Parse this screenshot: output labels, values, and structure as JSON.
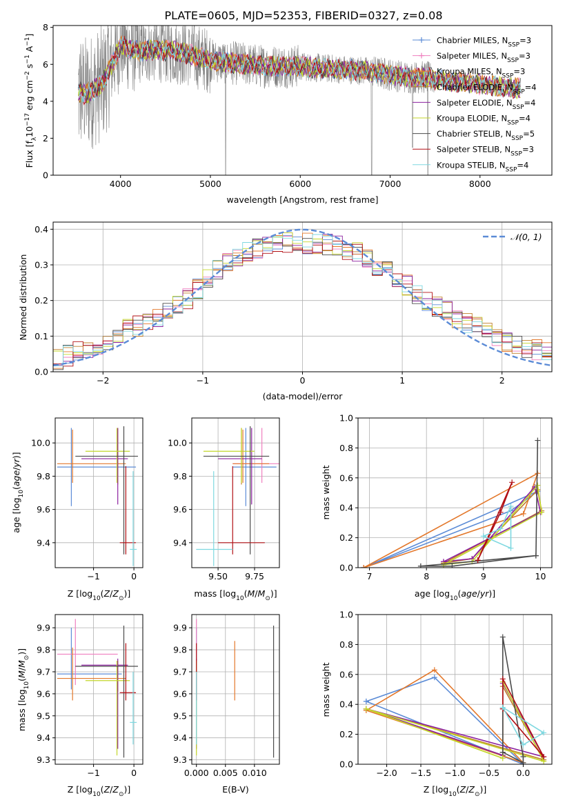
{
  "figure_title": "PLATE=0605, MJD=52353, FIBERID=0327, z=0.08",
  "colors": {
    "Chabrier MILES": "#5b8bd6",
    "Salpeter MILES": "#ef7fbf",
    "Kroupa MILES": "#e3772a",
    "Chabrier ELODIE": "#c07e2a",
    "Salpeter ELODIE": "#8a1f9e",
    "Kroupa ELODIE": "#c3d628",
    "Chabrier STELIB": "#4a4a4a",
    "Salpeter STELIB": "#b10f14",
    "Kroupa STELIB": "#7ed8e0",
    "data": "#808080",
    "normal": "#5b8bd6"
  },
  "chart_data": [
    {
      "type": "line",
      "panel": "spectrum",
      "title": "PLATE=0605, MJD=52353, FIBERID=0327, z=0.08",
      "xlabel": "wavelength [Angstrom, rest frame]",
      "ylabel": "Flux [f_λ 10^-17 erg cm^-2 s^-1 A^-1]",
      "xlim": [
        3250,
        8800
      ],
      "ylim": [
        0,
        8.1
      ],
      "xticks": [
        4000,
        5000,
        6000,
        7000,
        8000
      ],
      "yticks": [
        0,
        2,
        4,
        6,
        8
      ],
      "legend_position": "right",
      "data_range": [
        3530,
        8450
      ],
      "continuum": {
        "x": [
          3530,
          3600,
          3700,
          3800,
          3900,
          4000,
          4100,
          4200,
          4400,
          4600,
          4800,
          5000,
          5200,
          5400,
          5600,
          5800,
          6000,
          6200,
          6400,
          6600,
          6800,
          7000,
          7200,
          7400,
          7600,
          7800,
          8000,
          8200,
          8450
        ],
        "y": [
          4.5,
          4.4,
          4.6,
          5.0,
          6.0,
          7.0,
          6.9,
          6.7,
          6.8,
          6.7,
          6.5,
          6.2,
          6.1,
          6.0,
          5.9,
          5.9,
          5.9,
          5.8,
          5.75,
          5.7,
          5.6,
          5.45,
          5.3,
          5.3,
          5.1,
          5.0,
          4.95,
          4.8,
          4.7
        ]
      },
      "series": [
        {
          "name": "Chabrier MILES, N_SSP=3",
          "label_main": "Chabrier MILES, N",
          "sub": "SSP",
          "suffix": "=3",
          "marker": "+"
        },
        {
          "name": "Salpeter MILES, N_SSP=3",
          "label_main": "Salpeter MILES, N",
          "sub": "SSP",
          "suffix": "=3",
          "marker": "+"
        },
        {
          "name": "Kroupa MILES, N_SSP=3",
          "label_main": "Kroupa MILES, N",
          "sub": "SSP",
          "suffix": "=3",
          "marker": "+"
        },
        {
          "name": "Chabrier ELODIE, N_SSP=4",
          "label_main": "Chabrier ELODIE, N",
          "sub": "SSP",
          "suffix": "=4",
          "marker": ""
        },
        {
          "name": "Salpeter ELODIE, N_SSP=4",
          "label_main": "Salpeter ELODIE, N",
          "sub": "SSP",
          "suffix": "=4",
          "marker": ""
        },
        {
          "name": "Kroupa ELODIE, N_SSP=4",
          "label_main": "Kroupa ELODIE, N",
          "sub": "SSP",
          "suffix": "=4",
          "marker": ""
        },
        {
          "name": "Chabrier STELIB, N_SSP=5",
          "label_main": "Chabrier STELIB, N",
          "sub": "SSP",
          "suffix": "=5",
          "marker": ""
        },
        {
          "name": "Salpeter STELIB, N_SSP=3",
          "label_main": "Salpeter STELIB, N",
          "sub": "SSP",
          "suffix": "=3",
          "marker": ""
        },
        {
          "name": "Kroupa STELIB, N_SSP=4",
          "label_main": "Kroupa STELIB, N",
          "sub": "SSP",
          "suffix": "=4",
          "marker": ""
        }
      ]
    },
    {
      "type": "histogram",
      "panel": "residuals",
      "xlabel": "(data-model)/error",
      "ylabel": "Normed distribution",
      "xlim": [
        -2.5,
        2.5
      ],
      "ylim": [
        0,
        0.42
      ],
      "xticks": [
        -2,
        -1,
        0,
        1,
        2
      ],
      "yticks": [
        0.0,
        0.1,
        0.2,
        0.3,
        0.4
      ],
      "bin_width": 0.1,
      "legend": "𝒩(0, 1)",
      "legend_position": "top-right",
      "grid": true,
      "envelope": {
        "x": [
          -2.5,
          -2.2,
          -2.0,
          -1.8,
          -1.6,
          -1.4,
          -1.2,
          -1.0,
          -0.8,
          -0.6,
          -0.4,
          -0.2,
          0.0,
          0.2,
          0.4,
          0.6,
          0.8,
          1.0,
          1.2,
          1.4,
          1.6,
          1.8,
          2.0,
          2.2,
          2.5
        ],
        "y": [
          0.03,
          0.06,
          0.07,
          0.12,
          0.13,
          0.16,
          0.19,
          0.25,
          0.3,
          0.33,
          0.35,
          0.36,
          0.36,
          0.36,
          0.35,
          0.33,
          0.29,
          0.26,
          0.2,
          0.18,
          0.14,
          0.12,
          0.09,
          0.07,
          0.05
        ]
      }
    },
    {
      "type": "scatter",
      "panel": "age_vs_Z",
      "xlabel": "Z [log10(Z/Z☉)]",
      "ylabel": "age  [log10(age/yr)]",
      "xlim": [
        -1.95,
        0.22
      ],
      "ylim": [
        9.25,
        10.15
      ],
      "xticks": [
        -1,
        0
      ],
      "yticks": [
        9.4,
        9.6,
        9.8,
        10.0
      ],
      "points": [
        {
          "model": "Chabrier MILES",
          "x": -1.55,
          "y": 9.855,
          "xlo": -1.9,
          "xhi": 0.05,
          "ylo": 9.62,
          "yhi": 10.09
        },
        {
          "model": "Kroupa MILES",
          "x": -1.52,
          "y": 9.875,
          "xlo": -1.9,
          "xhi": -0.2,
          "ylo": 9.76,
          "yhi": 10.08
        },
        {
          "model": "Chabrier ELODIE",
          "x": -0.4,
          "y": 9.83,
          "xlo": -0.4,
          "xhi": -0.4,
          "ylo": 9.75,
          "yhi": 10.09
        },
        {
          "model": "Salpeter ELODIE",
          "x": -0.4,
          "y": 9.905,
          "xlo": -1.3,
          "xhi": -0.15,
          "ylo": 9.63,
          "yhi": 10.09
        },
        {
          "model": "Kroupa ELODIE",
          "x": -0.42,
          "y": 9.95,
          "xlo": -1.2,
          "xhi": -0.1,
          "ylo": 9.76,
          "yhi": 10.09
        },
        {
          "model": "Chabrier STELIB",
          "x": -0.25,
          "y": 9.92,
          "xlo": -1.45,
          "xhi": 0.1,
          "ylo": 9.33,
          "yhi": 10.1
        },
        {
          "model": "Salpeter STELIB",
          "x": -0.2,
          "y": 9.4,
          "xlo": -0.35,
          "xhi": 0.05,
          "ylo": 9.33,
          "yhi": 9.86
        },
        {
          "model": "Kroupa STELIB",
          "x": -0.02,
          "y": 9.36,
          "xlo": -0.1,
          "xhi": 0.07,
          "ylo": 9.26,
          "yhi": 9.83
        }
      ]
    },
    {
      "type": "scatter",
      "panel": "age_vs_mass",
      "xlabel": "mass [log10(M/M☉)]",
      "ylabel": "",
      "xlim": [
        9.32,
        9.92
      ],
      "ylim": [
        9.25,
        10.15
      ],
      "xticks": [
        9.5,
        9.75
      ],
      "xtick_labels": [
        "9.50",
        "9.75"
      ],
      "yticks": [
        9.4,
        9.6,
        9.8,
        10.0
      ],
      "points": [
        {
          "model": "Chabrier MILES",
          "x": 9.69,
          "y": 9.855,
          "xlo": 9.6,
          "xhi": 9.9,
          "ylo": 9.62,
          "yhi": 10.09
        },
        {
          "model": "Salpeter MILES",
          "x": 9.8,
          "y": 9.875,
          "xlo": 9.6,
          "xhi": 9.92,
          "ylo": 9.76,
          "yhi": 10.09
        },
        {
          "model": "Kroupa MILES",
          "x": 9.67,
          "y": 9.875,
          "xlo": 9.6,
          "xhi": 9.85,
          "ylo": 9.76,
          "yhi": 10.08
        },
        {
          "model": "Chabrier ELODIE",
          "x": 9.66,
          "y": 9.83,
          "xlo": 9.66,
          "xhi": 9.66,
          "ylo": 9.75,
          "yhi": 10.09
        },
        {
          "model": "Salpeter ELODIE",
          "x": 9.73,
          "y": 9.905,
          "xlo": 9.5,
          "xhi": 9.8,
          "ylo": 9.63,
          "yhi": 10.09
        },
        {
          "model": "Kroupa ELODIE",
          "x": 9.66,
          "y": 9.95,
          "xlo": 9.4,
          "xhi": 9.75,
          "ylo": 9.76,
          "yhi": 10.09
        },
        {
          "model": "Chabrier STELIB",
          "x": 9.72,
          "y": 9.92,
          "xlo": 9.4,
          "xhi": 9.85,
          "ylo": 9.33,
          "yhi": 10.1
        },
        {
          "model": "Salpeter STELIB",
          "x": 9.6,
          "y": 9.4,
          "xlo": 9.5,
          "xhi": 9.82,
          "ylo": 9.33,
          "yhi": 9.86
        },
        {
          "model": "Kroupa STELIB",
          "x": 9.47,
          "y": 9.36,
          "xlo": 9.35,
          "xhi": 9.6,
          "ylo": 9.26,
          "yhi": 9.83
        }
      ]
    },
    {
      "type": "line",
      "panel": "massweight_vs_age",
      "xlabel": "age  [log10(age/yr)]",
      "ylabel": "mass weight",
      "xlim": [
        6.8,
        10.2
      ],
      "ylim": [
        0,
        1.0
      ],
      "xticks": [
        7,
        8,
        9,
        10
      ],
      "yticks": [
        0.0,
        0.2,
        0.4,
        0.6,
        0.8,
        1.0
      ],
      "series": [
        {
          "model": "Chabrier MILES",
          "x": [
            6.9,
            9.48,
            9.95,
            6.9
          ],
          "y": [
            0.0,
            0.38,
            0.51,
            0.0
          ]
        },
        {
          "model": "Kroupa MILES",
          "x": [
            6.9,
            9.7,
            9.95,
            6.9
          ],
          "y": [
            0.0,
            0.36,
            0.63,
            0.0
          ]
        },
        {
          "model": "Chabrier ELODIE",
          "x": [
            8.3,
            8.8,
            9.95,
            10.02,
            8.3
          ],
          "y": [
            0.03,
            0.06,
            0.52,
            0.38,
            0.03
          ]
        },
        {
          "model": "Salpeter ELODIE",
          "x": [
            8.3,
            8.8,
            9.9,
            10.0,
            8.3
          ],
          "y": [
            0.04,
            0.06,
            0.54,
            0.37,
            0.04
          ]
        },
        {
          "model": "Kroupa ELODIE",
          "x": [
            8.3,
            8.8,
            9.95,
            10.02,
            8.3
          ],
          "y": [
            0.02,
            0.04,
            0.55,
            0.37,
            0.02
          ]
        },
        {
          "model": "Chabrier STELIB",
          "x": [
            7.9,
            8.45,
            9.92,
            9.95,
            9.92,
            7.9
          ],
          "y": [
            0.01,
            0.01,
            0.08,
            0.85,
            0.08,
            0.01
          ]
        },
        {
          "model": "Salpeter STELIB",
          "x": [
            8.9,
            9.3,
            9.5,
            8.9
          ],
          "y": [
            0.05,
            0.37,
            0.57,
            0.05
          ]
        },
        {
          "model": "Kroupa STELIB",
          "x": [
            9.0,
            9.3,
            9.48,
            9.48,
            9.0
          ],
          "y": [
            0.21,
            0.26,
            0.41,
            0.13,
            0.21
          ]
        }
      ]
    },
    {
      "type": "scatter",
      "panel": "mass_vs_Z",
      "xlabel": "Z [log10(Z/Z☉)]",
      "ylabel": "mass [log10(M/M☉)]",
      "xlim": [
        -1.95,
        0.22
      ],
      "ylim": [
        9.28,
        9.96
      ],
      "xticks": [
        -1,
        0
      ],
      "yticks": [
        9.3,
        9.4,
        9.5,
        9.6,
        9.7,
        9.8,
        9.9
      ],
      "points": [
        {
          "model": "Chabrier MILES",
          "x": -1.55,
          "y": 9.69,
          "xlo": -1.9,
          "xhi": -0.3,
          "ylo": 9.62,
          "yhi": 9.9
        },
        {
          "model": "Salpeter MILES",
          "x": -1.45,
          "y": 9.78,
          "xlo": -1.9,
          "xhi": -0.4,
          "ylo": 9.64,
          "yhi": 9.94
        },
        {
          "model": "Kroupa MILES",
          "x": -1.52,
          "y": 9.67,
          "xlo": -1.9,
          "xhi": -0.2,
          "ylo": 9.57,
          "yhi": 9.81
        },
        {
          "model": "Chabrier ELODIE",
          "x": -0.4,
          "y": 9.665,
          "xlo": -0.4,
          "xhi": -0.4,
          "ylo": 9.61,
          "yhi": 9.75
        },
        {
          "model": "Salpeter ELODIE",
          "x": -0.4,
          "y": 9.73,
          "xlo": -1.3,
          "xhi": -0.15,
          "ylo": 9.35,
          "yhi": 9.76
        },
        {
          "model": "Kroupa ELODIE",
          "x": -0.42,
          "y": 9.66,
          "xlo": -1.2,
          "xhi": -0.1,
          "ylo": 9.32,
          "yhi": 9.75
        },
        {
          "model": "Chabrier STELIB",
          "x": -0.25,
          "y": 9.725,
          "xlo": -1.45,
          "xhi": 0.1,
          "ylo": 9.31,
          "yhi": 9.91
        },
        {
          "model": "Salpeter STELIB",
          "x": -0.2,
          "y": 9.605,
          "xlo": -0.35,
          "xhi": 0.05,
          "ylo": 9.57,
          "yhi": 9.83
        },
        {
          "model": "Kroupa STELIB",
          "x": -0.02,
          "y": 9.47,
          "xlo": -0.1,
          "xhi": 0.07,
          "ylo": 9.37,
          "yhi": 9.7
        }
      ]
    },
    {
      "type": "scatter",
      "panel": "mass_vs_ebv",
      "xlabel": "E(B-V)",
      "ylabel": "",
      "xlim": [
        -0.0008,
        0.0143
      ],
      "ylim": [
        9.28,
        9.96
      ],
      "xticks": [
        0.0,
        0.005,
        0.01
      ],
      "xtick_labels": [
        "0.000",
        "0.005",
        "0.010"
      ],
      "yticks": [
        9.3,
        9.4,
        9.5,
        9.6,
        9.7,
        9.8,
        9.9
      ],
      "points": [
        {
          "model": "Chabrier MILES",
          "x": 0.0,
          "y": 9.69,
          "ylo": 9.62,
          "yhi": 9.9
        },
        {
          "model": "Salpeter MILES",
          "x": 0.0,
          "y": 9.78,
          "ylo": 9.64,
          "yhi": 9.94
        },
        {
          "model": "Kroupa MILES",
          "x": 0.0066,
          "y": 9.67,
          "ylo": 9.57,
          "yhi": 9.84
        },
        {
          "model": "Salpeter ELODIE",
          "x": 0.0,
          "y": 9.73,
          "ylo": 9.35,
          "yhi": 9.76
        },
        {
          "model": "Kroupa ELODIE",
          "x": 0.0,
          "y": 9.66,
          "ylo": 9.32,
          "yhi": 9.75
        },
        {
          "model": "Chabrier STELIB",
          "x": 0.0133,
          "y": 9.725,
          "ylo": 9.31,
          "yhi": 9.91
        },
        {
          "model": "Salpeter STELIB",
          "x": 0.0,
          "y": 9.605,
          "ylo": 9.57,
          "yhi": 9.83
        },
        {
          "model": "Kroupa STELIB",
          "x": 0.0,
          "y": 9.47,
          "ylo": 9.37,
          "yhi": 9.7
        }
      ]
    },
    {
      "type": "line",
      "panel": "massweight_vs_Z",
      "xlabel": "Z [log10(Z/Z☉)]",
      "ylabel": "mass weight",
      "xlim": [
        -2.42,
        0.42
      ],
      "ylim": [
        0,
        1.0
      ],
      "xticks": [
        -2.0,
        -1.5,
        -1.0,
        -0.5,
        0.0
      ],
      "xtick_labels": [
        "−2.0",
        "−1.5",
        "−1.0",
        "−0.5",
        "0.0"
      ],
      "yticks": [
        0.0,
        0.2,
        0.4,
        0.6,
        0.8,
        1.0
      ],
      "series": [
        {
          "model": "Chabrier MILES",
          "x": [
            -2.3,
            -1.3,
            0.0,
            -2.3
          ],
          "y": [
            0.42,
            0.58,
            0.0,
            0.42
          ]
        },
        {
          "model": "Kroupa MILES",
          "x": [
            -2.3,
            -1.3,
            0.0,
            -2.3
          ],
          "y": [
            0.36,
            0.63,
            0.01,
            0.36
          ]
        },
        {
          "model": "Chabrier ELODIE",
          "x": [
            -2.3,
            -0.3,
            -0.3,
            0.3,
            -2.3
          ],
          "y": [
            0.37,
            0.06,
            0.52,
            0.03,
            0.37
          ]
        },
        {
          "model": "Salpeter ELODIE",
          "x": [
            -2.3,
            -0.3,
            -0.3,
            0.3,
            -2.3
          ],
          "y": [
            0.37,
            0.06,
            0.54,
            0.05,
            0.37
          ]
        },
        {
          "model": "Kroupa ELODIE",
          "x": [
            -2.3,
            -0.3,
            -0.3,
            0.3,
            -2.3
          ],
          "y": [
            0.37,
            0.04,
            0.55,
            0.02,
            0.37
          ]
        },
        {
          "model": "Chabrier STELIB",
          "x": [
            -0.3,
            -0.3,
            0.0,
            0.0,
            -0.3
          ],
          "y": [
            0.08,
            0.85,
            0.05,
            0.01,
            0.08
          ]
        },
        {
          "model": "Salpeter STELIB",
          "x": [
            -0.3,
            -0.3,
            0.3,
            -0.3
          ],
          "y": [
            0.37,
            0.57,
            0.05,
            0.37
          ]
        },
        {
          "model": "Kroupa STELIB",
          "x": [
            -0.3,
            0.0,
            0.3,
            -0.3
          ],
          "y": [
            0.38,
            0.13,
            0.21,
            0.38
          ]
        }
      ]
    }
  ]
}
